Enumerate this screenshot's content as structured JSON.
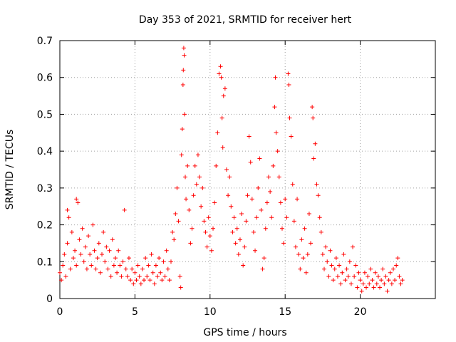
{
  "chart_data": {
    "type": "scatter",
    "title": "Day 353 of 2021, SRMTID for receiver hert",
    "xlabel": "GPS time / hours",
    "ylabel": "SRMTID / TECUs",
    "xlim": [
      0,
      25
    ],
    "ylim": [
      0,
      0.7
    ],
    "xticks": [
      0,
      5,
      10,
      15,
      20
    ],
    "xtick_labels": [
      "0",
      "5",
      "10",
      "15",
      "20"
    ],
    "yticks": [
      0,
      0.1,
      0.2,
      0.3,
      0.4,
      0.5,
      0.6,
      0.7
    ],
    "ytick_labels": [
      "0",
      "0.1",
      "0.2",
      "0.3",
      "0.4",
      "0.5",
      "0.6",
      "0.7"
    ],
    "grid": true,
    "marker": "+",
    "color": "#ff0000",
    "series": [
      {
        "name": "SRMTID",
        "points": [
          [
            0.0,
            0.07
          ],
          [
            0.1,
            0.05
          ],
          [
            0.2,
            0.09
          ],
          [
            0.3,
            0.12
          ],
          [
            0.4,
            0.06
          ],
          [
            0.5,
            0.15
          ],
          [
            0.5,
            0.24
          ],
          [
            0.6,
            0.22
          ],
          [
            0.7,
            0.08
          ],
          [
            0.8,
            0.18
          ],
          [
            0.9,
            0.11
          ],
          [
            1.0,
            0.13
          ],
          [
            1.1,
            0.09
          ],
          [
            1.1,
            0.27
          ],
          [
            1.2,
            0.26
          ],
          [
            1.3,
            0.16
          ],
          [
            1.4,
            0.12
          ],
          [
            1.5,
            0.19
          ],
          [
            1.6,
            0.1
          ],
          [
            1.7,
            0.14
          ],
          [
            1.8,
            0.08
          ],
          [
            1.9,
            0.17
          ],
          [
            2.0,
            0.12
          ],
          [
            2.1,
            0.09
          ],
          [
            2.2,
            0.2
          ],
          [
            2.3,
            0.13
          ],
          [
            2.4,
            0.08
          ],
          [
            2.5,
            0.11
          ],
          [
            2.6,
            0.15
          ],
          [
            2.7,
            0.07
          ],
          [
            2.8,
            0.12
          ],
          [
            2.9,
            0.18
          ],
          [
            3.0,
            0.1
          ],
          [
            3.1,
            0.14
          ],
          [
            3.2,
            0.08
          ],
          [
            3.3,
            0.13
          ],
          [
            3.4,
            0.06
          ],
          [
            3.5,
            0.16
          ],
          [
            3.6,
            0.09
          ],
          [
            3.7,
            0.11
          ],
          [
            3.8,
            0.07
          ],
          [
            3.9,
            0.13
          ],
          [
            4.0,
            0.09
          ],
          [
            4.1,
            0.06
          ],
          [
            4.2,
            0.1
          ],
          [
            4.3,
            0.24
          ],
          [
            4.4,
            0.08
          ],
          [
            4.5,
            0.06
          ],
          [
            4.6,
            0.11
          ],
          [
            4.7,
            0.05
          ],
          [
            4.8,
            0.08
          ],
          [
            4.9,
            0.04
          ],
          [
            5.0,
            0.07
          ],
          [
            5.1,
            0.05
          ],
          [
            5.2,
            0.09
          ],
          [
            5.3,
            0.06
          ],
          [
            5.4,
            0.04
          ],
          [
            5.5,
            0.08
          ],
          [
            5.6,
            0.05
          ],
          [
            5.7,
            0.11
          ],
          [
            5.8,
            0.06
          ],
          [
            5.9,
            0.09
          ],
          [
            6.0,
            0.05
          ],
          [
            6.1,
            0.12
          ],
          [
            6.2,
            0.07
          ],
          [
            6.3,
            0.04
          ],
          [
            6.4,
            0.09
          ],
          [
            6.5,
            0.06
          ],
          [
            6.6,
            0.11
          ],
          [
            6.7,
            0.07
          ],
          [
            6.8,
            0.05
          ],
          [
            6.9,
            0.1
          ],
          [
            7.0,
            0.06
          ],
          [
            7.1,
            0.13
          ],
          [
            7.2,
            0.08
          ],
          [
            7.3,
            0.05
          ],
          [
            7.4,
            0.1
          ],
          [
            7.5,
            0.18
          ],
          [
            7.6,
            0.16
          ],
          [
            7.7,
            0.23
          ],
          [
            7.8,
            0.3
          ],
          [
            7.9,
            0.21
          ],
          [
            8.0,
            0.06
          ],
          [
            8.05,
            0.03
          ],
          [
            8.1,
            0.39
          ],
          [
            8.15,
            0.46
          ],
          [
            8.2,
            0.58
          ],
          [
            8.22,
            0.62
          ],
          [
            8.25,
            0.68
          ],
          [
            8.28,
            0.66
          ],
          [
            8.3,
            0.5
          ],
          [
            8.35,
            0.33
          ],
          [
            8.4,
            0.27
          ],
          [
            8.5,
            0.36
          ],
          [
            8.6,
            0.24
          ],
          [
            8.7,
            0.15
          ],
          [
            8.8,
            0.19
          ],
          [
            8.9,
            0.28
          ],
          [
            9.0,
            0.36
          ],
          [
            9.1,
            0.31
          ],
          [
            9.2,
            0.39
          ],
          [
            9.3,
            0.33
          ],
          [
            9.4,
            0.25
          ],
          [
            9.5,
            0.3
          ],
          [
            9.6,
            0.21
          ],
          [
            9.7,
            0.18
          ],
          [
            9.8,
            0.14
          ],
          [
            9.9,
            0.22
          ],
          [
            10.0,
            0.17
          ],
          [
            10.1,
            0.13
          ],
          [
            10.2,
            0.19
          ],
          [
            10.3,
            0.26
          ],
          [
            10.4,
            0.36
          ],
          [
            10.5,
            0.45
          ],
          [
            10.6,
            0.61
          ],
          [
            10.7,
            0.63
          ],
          [
            10.75,
            0.6
          ],
          [
            10.8,
            0.49
          ],
          [
            10.85,
            0.41
          ],
          [
            10.9,
            0.55
          ],
          [
            11.0,
            0.57
          ],
          [
            11.1,
            0.35
          ],
          [
            11.2,
            0.28
          ],
          [
            11.3,
            0.33
          ],
          [
            11.4,
            0.25
          ],
          [
            11.5,
            0.18
          ],
          [
            11.6,
            0.22
          ],
          [
            11.7,
            0.15
          ],
          [
            11.8,
            0.19
          ],
          [
            11.9,
            0.12
          ],
          [
            12.0,
            0.16
          ],
          [
            12.1,
            0.23
          ],
          [
            12.2,
            0.09
          ],
          [
            12.3,
            0.14
          ],
          [
            12.4,
            0.21
          ],
          [
            12.5,
            0.28
          ],
          [
            12.6,
            0.44
          ],
          [
            12.7,
            0.37
          ],
          [
            12.8,
            0.27
          ],
          [
            12.9,
            0.18
          ],
          [
            13.0,
            0.13
          ],
          [
            13.1,
            0.22
          ],
          [
            13.2,
            0.3
          ],
          [
            13.3,
            0.38
          ],
          [
            13.4,
            0.24
          ],
          [
            13.5,
            0.08
          ],
          [
            13.6,
            0.11
          ],
          [
            13.7,
            0.19
          ],
          [
            13.8,
            0.26
          ],
          [
            13.9,
            0.33
          ],
          [
            14.0,
            0.29
          ],
          [
            14.1,
            0.22
          ],
          [
            14.2,
            0.36
          ],
          [
            14.3,
            0.52
          ],
          [
            14.35,
            0.6
          ],
          [
            14.4,
            0.45
          ],
          [
            14.5,
            0.4
          ],
          [
            14.6,
            0.33
          ],
          [
            14.7,
            0.26
          ],
          [
            14.8,
            0.19
          ],
          [
            14.9,
            0.15
          ],
          [
            15.0,
            0.27
          ],
          [
            15.1,
            0.22
          ],
          [
            15.2,
            0.61
          ],
          [
            15.25,
            0.58
          ],
          [
            15.3,
            0.49
          ],
          [
            15.4,
            0.44
          ],
          [
            15.5,
            0.31
          ],
          [
            15.6,
            0.21
          ],
          [
            15.7,
            0.14
          ],
          [
            15.8,
            0.27
          ],
          [
            15.9,
            0.12
          ],
          [
            16.0,
            0.08
          ],
          [
            16.1,
            0.16
          ],
          [
            16.2,
            0.11
          ],
          [
            16.3,
            0.19
          ],
          [
            16.4,
            0.07
          ],
          [
            16.5,
            0.12
          ],
          [
            16.6,
            0.23
          ],
          [
            16.7,
            0.15
          ],
          [
            16.8,
            0.52
          ],
          [
            16.85,
            0.49
          ],
          [
            16.9,
            0.38
          ],
          [
            17.0,
            0.42
          ],
          [
            17.1,
            0.31
          ],
          [
            17.2,
            0.28
          ],
          [
            17.3,
            0.22
          ],
          [
            17.4,
            0.18
          ],
          [
            17.5,
            0.12
          ],
          [
            17.6,
            0.08
          ],
          [
            17.7,
            0.14
          ],
          [
            17.8,
            0.1
          ],
          [
            17.9,
            0.06
          ],
          [
            18.0,
            0.13
          ],
          [
            18.1,
            0.09
          ],
          [
            18.2,
            0.05
          ],
          [
            18.3,
            0.08
          ],
          [
            18.4,
            0.11
          ],
          [
            18.5,
            0.06
          ],
          [
            18.6,
            0.09
          ],
          [
            18.7,
            0.04
          ],
          [
            18.8,
            0.07
          ],
          [
            18.9,
            0.12
          ],
          [
            19.0,
            0.05
          ],
          [
            19.1,
            0.08
          ],
          [
            19.2,
            0.06
          ],
          [
            19.3,
            0.1
          ],
          [
            19.4,
            0.04
          ],
          [
            19.5,
            0.14
          ],
          [
            19.6,
            0.06
          ],
          [
            19.7,
            0.09
          ],
          [
            19.8,
            0.03
          ],
          [
            19.9,
            0.07
          ],
          [
            20.0,
            0.05
          ],
          [
            20.1,
            0.02
          ],
          [
            20.2,
            0.04
          ],
          [
            20.3,
            0.07
          ],
          [
            20.4,
            0.03
          ],
          [
            20.5,
            0.06
          ],
          [
            20.6,
            0.04
          ],
          [
            20.7,
            0.08
          ],
          [
            20.8,
            0.05
          ],
          [
            20.9,
            0.03
          ],
          [
            21.0,
            0.07
          ],
          [
            21.1,
            0.04
          ],
          [
            21.2,
            0.06
          ],
          [
            21.3,
            0.03
          ],
          [
            21.4,
            0.05
          ],
          [
            21.5,
            0.08
          ],
          [
            21.6,
            0.04
          ],
          [
            21.7,
            0.06
          ],
          [
            21.8,
            0.02
          ],
          [
            21.9,
            0.05
          ],
          [
            22.0,
            0.07
          ],
          [
            22.1,
            0.04
          ],
          [
            22.2,
            0.08
          ],
          [
            22.3,
            0.05
          ],
          [
            22.4,
            0.09
          ],
          [
            22.5,
            0.11
          ],
          [
            22.6,
            0.06
          ],
          [
            22.7,
            0.04
          ],
          [
            22.8,
            0.05
          ]
        ]
      }
    ]
  }
}
